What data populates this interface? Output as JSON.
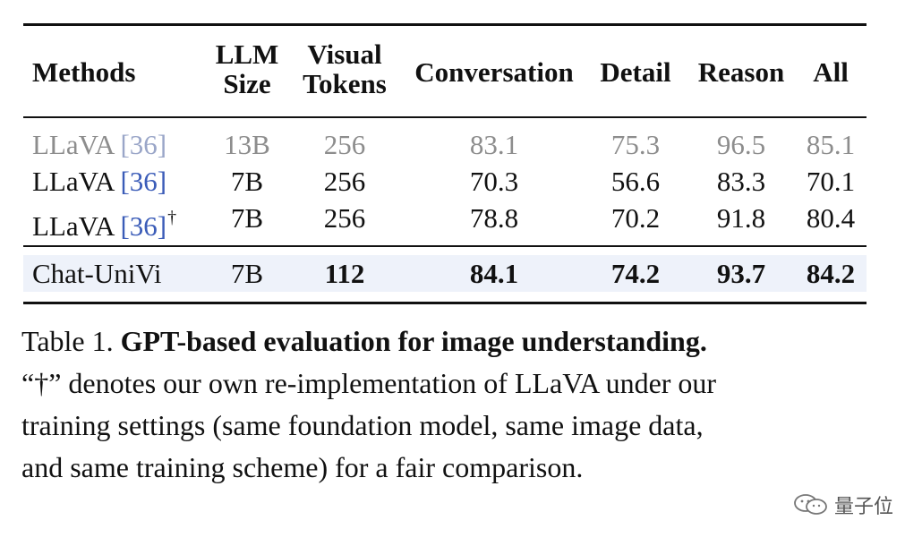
{
  "table": {
    "headers": {
      "methods": "Methods",
      "llm_size_1": "LLM",
      "llm_size_2": "Size",
      "visual_tokens_1": "Visual",
      "visual_tokens_2": "Tokens",
      "conversation": "Conversation",
      "detail": "Detail",
      "reason": "Reason",
      "all": "All"
    },
    "rows": [
      {
        "method": "LLaVA ",
        "cite_open": "[",
        "cite": "36",
        "cite_close": "]",
        "dagger": "",
        "size": "13B",
        "tokens": "256",
        "conversation": "83.1",
        "detail": "75.3",
        "reason": "96.5",
        "all": "85.1"
      },
      {
        "method": "LLaVA ",
        "cite_open": "[",
        "cite": "36",
        "cite_close": "]",
        "dagger": "",
        "size": "7B",
        "tokens": "256",
        "conversation": "70.3",
        "detail": "56.6",
        "reason": "83.3",
        "all": "70.1"
      },
      {
        "method": "LLaVA ",
        "cite_open": "[",
        "cite": "36",
        "cite_close": "]",
        "dagger": "†",
        "size": "7B",
        "tokens": "256",
        "conversation": "78.8",
        "detail": "70.2",
        "reason": "91.8",
        "all": "80.4"
      }
    ],
    "ours": {
      "method": "Chat-UniVi",
      "size": "7B",
      "tokens": "112",
      "conversation": "84.1",
      "detail": "74.2",
      "reason": "93.7",
      "all": "84.2"
    }
  },
  "caption": {
    "label": "Table 1.",
    "title": "GPT-based evaluation for image understanding.",
    "line2": "“†” denotes our own re-implementation of LLaVA under our",
    "line3": "training settings (same foundation model, same image data,",
    "line4": "and same training scheme) for a fair comparison."
  },
  "watermark": {
    "text": "量子位",
    "icon": "wechat-icon"
  }
}
